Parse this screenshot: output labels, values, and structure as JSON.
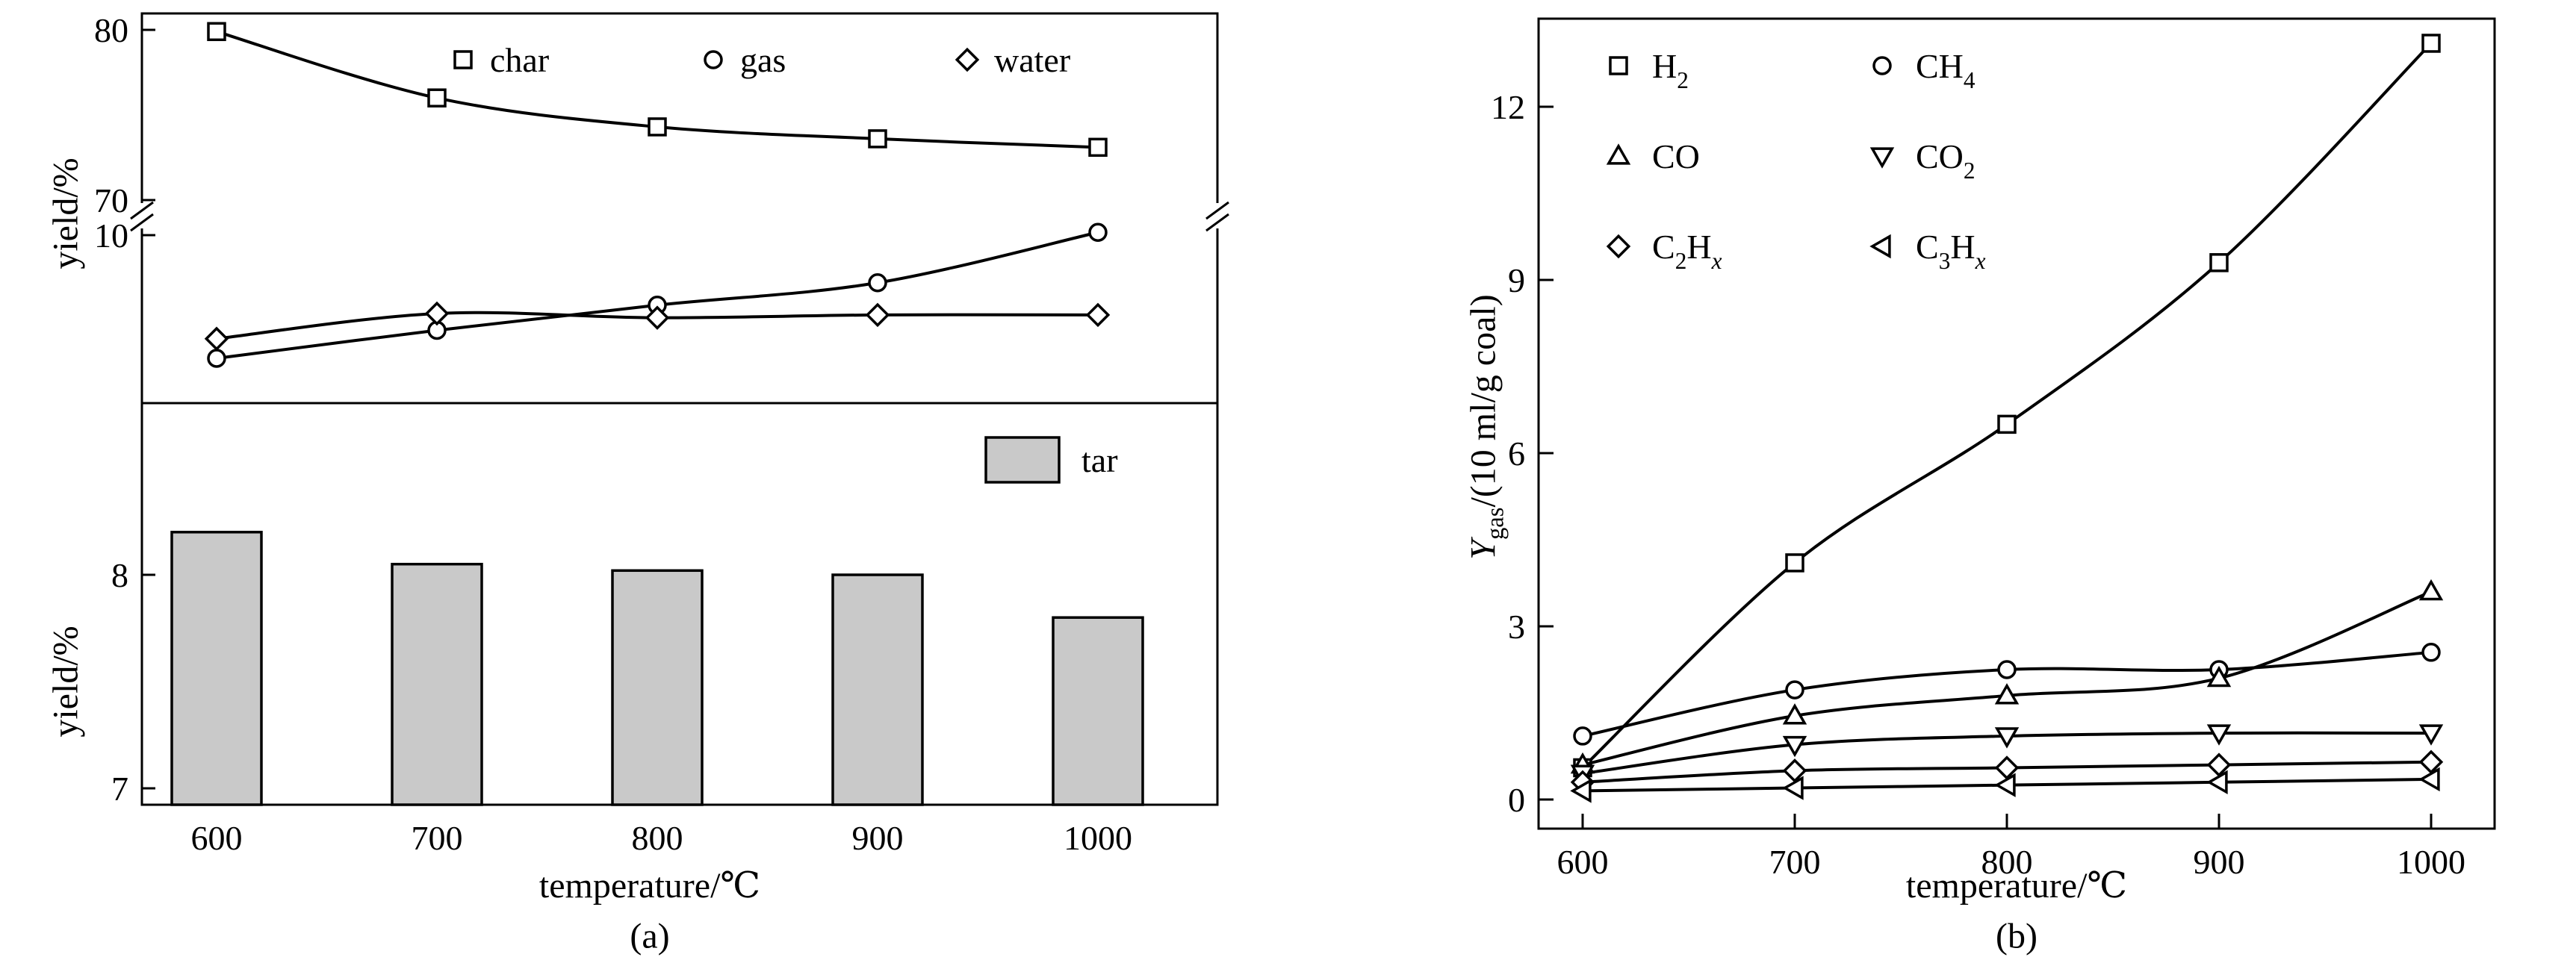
{
  "background": "#ffffff",
  "ink_color": "#000000",
  "panel_a": {
    "caption": "(a)",
    "x_label": "temperature/℃",
    "y_top_label": "yield/%",
    "y_bottom_label": "yield/%"
  },
  "panel_b": {
    "caption": "(b)",
    "x_label": "temperature/℃",
    "y_label_text": "Ygas/(10 ml/g coal)",
    "y_label_parts": [
      {
        "t": "Y",
        "italic": true
      },
      {
        "t": "gas",
        "sub": true
      },
      {
        "t": "/(10 ml/g coal)"
      }
    ]
  },
  "chart_data": [
    {
      "id": "panel_a_lines",
      "type": "line",
      "title": "",
      "x": [
        600,
        700,
        800,
        900,
        1000
      ],
      "xlabel": "temperature/℃",
      "ylabel": "yield/%",
      "axis_break": true,
      "yticks_upper": [
        80,
        70
      ],
      "yticks_lower": [
        10
      ],
      "ylim_upper": [
        70,
        81
      ],
      "ylim_lower": [
        4,
        10.7
      ],
      "grid": false,
      "legend_position": "top-inside",
      "series": [
        {
          "name": "char",
          "marker": "square",
          "axis": "upper",
          "values": [
            79.9,
            76.0,
            74.3,
            73.6,
            73.1
          ]
        },
        {
          "name": "gas",
          "marker": "circle",
          "axis": "lower",
          "values": [
            5.6,
            6.6,
            7.5,
            8.3,
            10.1
          ]
        },
        {
          "name": "water",
          "marker": "diamond",
          "axis": "lower",
          "values": [
            6.3,
            7.2,
            7.05,
            7.15,
            7.15
          ]
        }
      ]
    },
    {
      "id": "panel_a_bars",
      "type": "bar",
      "title": "",
      "categories": [
        600,
        700,
        800,
        900,
        1000
      ],
      "values": [
        8.2,
        8.05,
        8.02,
        8.0,
        7.8
      ],
      "legend_label": "tar",
      "bar_color": "#c9c9c9",
      "xlabel": "temperature/℃",
      "ylabel": "yield/%",
      "yticks": [
        8,
        7
      ],
      "ylim": [
        6.9,
        8.8
      ],
      "grid": false,
      "legend_position": "top-right-inside"
    },
    {
      "id": "panel_b_lines",
      "type": "line",
      "title": "",
      "x": [
        600,
        700,
        800,
        900,
        1000
      ],
      "xlabel": "temperature/℃",
      "ylabel": "Ygas/(10 ml/g coal)",
      "yticks": [
        0,
        3,
        6,
        9,
        12
      ],
      "ylim": [
        0,
        13.6
      ],
      "grid": false,
      "legend_position": "top-left-inside",
      "series": [
        {
          "name": "H2",
          "label_parts": [
            {
              "t": "H"
            },
            {
              "t": "2",
              "sub": true
            }
          ],
          "marker": "square",
          "values": [
            0.55,
            4.1,
            6.5,
            9.3,
            13.1
          ]
        },
        {
          "name": "CH4",
          "label_parts": [
            {
              "t": "CH"
            },
            {
              "t": "4",
              "sub": true
            }
          ],
          "marker": "circle",
          "values": [
            1.1,
            1.9,
            2.25,
            2.25,
            2.55
          ]
        },
        {
          "name": "CO",
          "label_parts": [
            {
              "t": "CO"
            }
          ],
          "marker": "triangle-up",
          "values": [
            0.6,
            1.45,
            1.8,
            2.1,
            3.6
          ]
        },
        {
          "name": "CO2",
          "label_parts": [
            {
              "t": "CO"
            },
            {
              "t": "2",
              "sub": true
            }
          ],
          "marker": "triangle-down",
          "values": [
            0.45,
            0.95,
            1.1,
            1.15,
            1.15
          ]
        },
        {
          "name": "C2Hx",
          "label_parts": [
            {
              "t": "C"
            },
            {
              "t": "2",
              "sub": true
            },
            {
              "t": "H"
            },
            {
              "t": "x",
              "sub": true,
              "italic": true
            }
          ],
          "marker": "diamond",
          "values": [
            0.3,
            0.5,
            0.55,
            0.6,
            0.65
          ]
        },
        {
          "name": "C3Hx",
          "label_parts": [
            {
              "t": "C"
            },
            {
              "t": "3",
              "sub": true
            },
            {
              "t": "H"
            },
            {
              "t": "x",
              "sub": true,
              "italic": true
            }
          ],
          "marker": "triangle-left",
          "values": [
            0.15,
            0.2,
            0.25,
            0.3,
            0.35
          ]
        }
      ]
    }
  ]
}
